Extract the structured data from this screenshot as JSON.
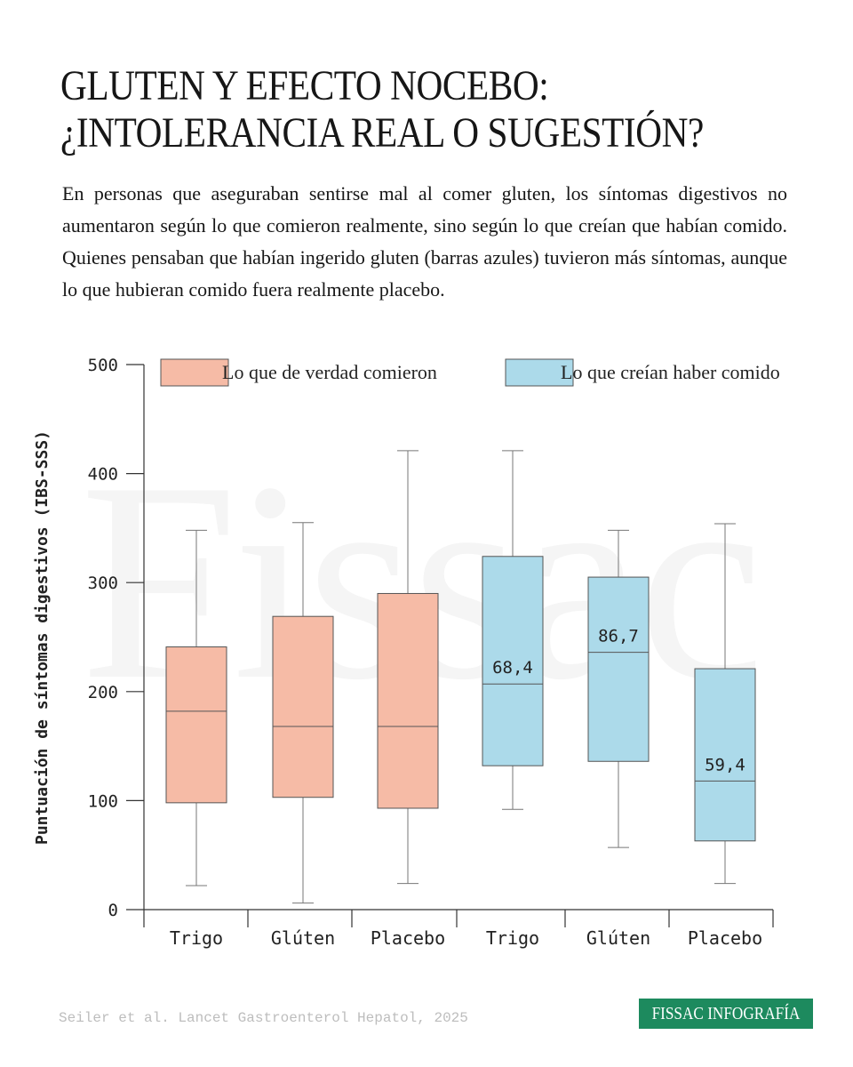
{
  "title_lines": [
    "GLUTEN Y EFECTO NOCEBO:",
    "¿INTOLERANCIA REAL O SUGESTIÓN?"
  ],
  "lede": "En personas que aseguraban sentirse mal al comer gluten, los síntomas digestivos no aumentaron según lo que comieron realmente, sino según lo que creían que habían comido. Quienes pensaban que habían ingerido gluten (barras azules) tuvieron más síntomas, aunque lo que hubieran comido fuera realmente placebo.",
  "watermark": "Fissac",
  "source": "Seiler et al. Lancet Gastroenterol Hepatol, 2025",
  "brand": "FISSAC INFOGRAFÍA",
  "colors": {
    "actual_fill": "#f6bba6",
    "believed_fill": "#acdaea",
    "brand": "#1d8a5e"
  },
  "chart_data": {
    "type": "box",
    "title": "",
    "xlabel": "",
    "ylabel": "Puntuación de síntomas digestivos (IBS-SSS)",
    "ylim": [
      0,
      500
    ],
    "yticks": [
      0,
      100,
      200,
      300,
      400,
      500
    ],
    "legend": [
      "Lo que de verdad comieron",
      "Lo que creían haber comido"
    ],
    "legend_placement": "top",
    "grid": false,
    "categories": [
      "Trigo",
      "Glúten",
      "Placebo",
      "Trigo",
      "Glúten",
      "Placebo"
    ],
    "boxes": [
      {
        "group": 0,
        "min": 22,
        "q1": 98,
        "median": 182,
        "q3": 241,
        "max": 348,
        "label": ""
      },
      {
        "group": 0,
        "min": 6,
        "q1": 103,
        "median": 168,
        "q3": 269,
        "max": 355,
        "label": ""
      },
      {
        "group": 0,
        "min": 24,
        "q1": 93,
        "median": 168,
        "q3": 290,
        "max": 421,
        "label": ""
      },
      {
        "group": 1,
        "min": 92,
        "q1": 132,
        "median": 207,
        "q3": 324,
        "max": 421,
        "label": "68,4"
      },
      {
        "group": 1,
        "min": 57,
        "q1": 136,
        "median": 236,
        "q3": 305,
        "max": 348,
        "label": "86,7"
      },
      {
        "group": 1,
        "min": 24,
        "q1": 63,
        "median": 118,
        "q3": 221,
        "max": 354,
        "label": "59,4"
      }
    ]
  }
}
